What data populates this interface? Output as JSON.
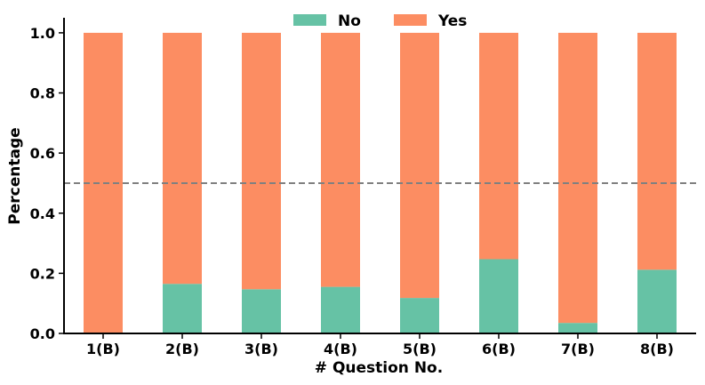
{
  "chart_data": {
    "type": "bar",
    "stacked": true,
    "title": "",
    "xlabel": "# Question No.",
    "ylabel": "Percentage",
    "ylim": [
      0,
      1.05
    ],
    "yticks": [
      "0.0",
      "0.2",
      "0.4",
      "0.6",
      "0.8",
      "1.0"
    ],
    "categories": [
      "1(B)",
      "2(B)",
      "3(B)",
      "4(B)",
      "5(B)",
      "6(B)",
      "7(B)",
      "8(B)"
    ],
    "series": [
      {
        "name": "No",
        "color": "#66c2a5",
        "values": [
          0.0,
          0.165,
          0.147,
          0.155,
          0.118,
          0.247,
          0.035,
          0.212
        ]
      },
      {
        "name": "Yes",
        "color": "#fc8d62",
        "values": [
          1.0,
          0.835,
          0.853,
          0.845,
          0.882,
          0.753,
          0.965,
          0.788
        ]
      }
    ],
    "reference_line": {
      "y": 0.5,
      "style": "dashed",
      "color": "#808080"
    },
    "legend": {
      "position": "top-center",
      "orientation": "horizontal"
    },
    "grid": false
  }
}
